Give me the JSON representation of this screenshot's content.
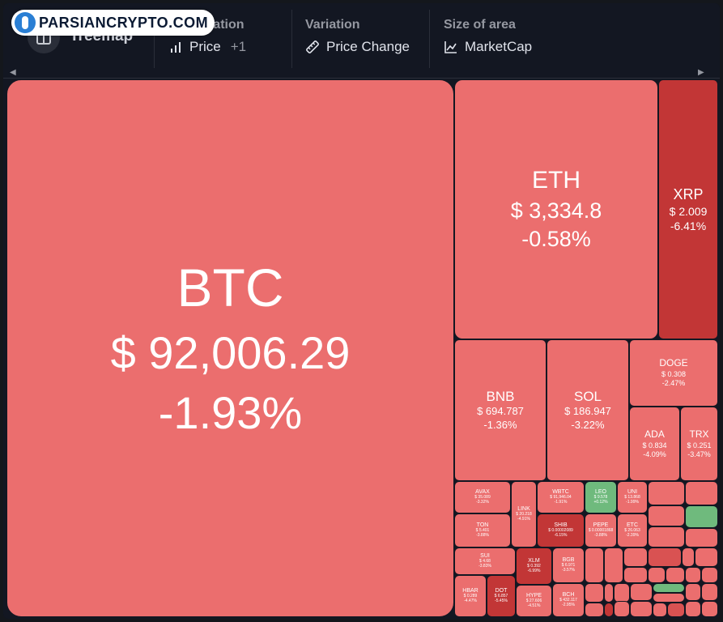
{
  "toolbar": {
    "title": "Treemap",
    "visualization": {
      "label": "Visualization",
      "value": "Price",
      "extra": "+1"
    },
    "variation": {
      "label": "Variation",
      "value": "Price Change"
    },
    "size": {
      "label": "Size of area",
      "value": "MarketCap"
    }
  },
  "watermark": {
    "text": "PARSIANCRYPTO.COM"
  },
  "colors": {
    "down": "#eb6e6e",
    "down_strong": "#c23636",
    "up": "#6fba7d",
    "background": "#131722"
  },
  "tiles": {
    "btc": {
      "sym": "BTC",
      "price": "$ 92,006.29",
      "chg": "-1.93%"
    },
    "eth": {
      "sym": "ETH",
      "price": "$ 3,334.8",
      "chg": "-0.58%"
    },
    "xrp": {
      "sym": "XRP",
      "price": "$ 2.009",
      "chg": "-6.41%"
    },
    "bnb": {
      "sym": "BNB",
      "price": "$ 694.787",
      "chg": "-1.36%"
    },
    "sol": {
      "sym": "SOL",
      "price": "$ 186.947",
      "chg": "-3.22%"
    },
    "doge": {
      "sym": "DOGE",
      "price": "$ 0.308",
      "chg": "-2.47%"
    },
    "ada": {
      "sym": "ADA",
      "price": "$ 0.834",
      "chg": "-4.09%"
    },
    "trx": {
      "sym": "TRX",
      "price": "$ 0.251",
      "chg": "-3.47%"
    },
    "avax": {
      "sym": "AVAX",
      "price": "$ 35.089",
      "chg": "-3.32%"
    },
    "link": {
      "sym": "LINK",
      "price": "$ 20.218",
      "chg": "-4.91%"
    },
    "wbtc": {
      "sym": "WBTC",
      "price": "$ 91,946.04",
      "chg": "-1.91%"
    },
    "leo": {
      "sym": "LEO",
      "price": "$ 9.578",
      "chg": "+0.12%"
    },
    "uni": {
      "sym": "UNI",
      "price": "$ 13.868",
      "chg": "-1.99%"
    },
    "ton": {
      "sym": "TON",
      "price": "$ 5.401",
      "chg": "-3.88%"
    },
    "shib": {
      "sym": "SHIB",
      "price": "$ 0.00002089",
      "chg": "-6.15%"
    },
    "pepe": {
      "sym": "PEPE",
      "price": "$ 0.00001868",
      "chg": "-3.88%"
    },
    "etc": {
      "sym": "ETC",
      "price": "$ 26.063",
      "chg": "-2.39%"
    },
    "sui": {
      "sym": "SUI",
      "price": "$ 4.68",
      "chg": "-3.83%"
    },
    "xlm": {
      "sym": "XLM",
      "price": "$ 0.392",
      "chg": "-6.99%"
    },
    "bgb": {
      "sym": "BGB",
      "price": "$ 6.971",
      "chg": "-3.57%"
    },
    "hbar": {
      "sym": "HBAR",
      "price": "$ 0.289",
      "chg": "-4.47%"
    },
    "dot": {
      "sym": "DOT",
      "price": "$ 6.857",
      "chg": "-5.45%"
    },
    "hype": {
      "sym": "HYPE",
      "price": "$ 27.606",
      "chg": "-4.51%"
    },
    "bch": {
      "sym": "BCH",
      "price": "$ 432.117",
      "chg": "-2.95%"
    }
  }
}
